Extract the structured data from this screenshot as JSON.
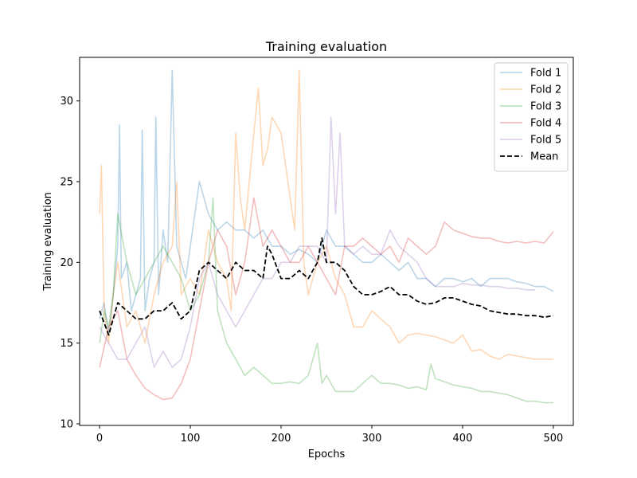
{
  "chart_data": {
    "type": "line",
    "title": "Training evaluation",
    "xlabel": "Epochs",
    "ylabel": "Training evaluation",
    "xlim": [
      -22,
      522
    ],
    "ylim": [
      9.9,
      32.7
    ],
    "xticks": [
      0,
      100,
      200,
      300,
      400,
      500
    ],
    "yticks": [
      10,
      15,
      20,
      25,
      30
    ],
    "grid": false,
    "legend_position": "top-right",
    "series": [
      {
        "name": "Fold 1",
        "color": "#1f77b4",
        "opacity": 0.3,
        "style": "solid",
        "x": [
          0,
          5,
          10,
          15,
          20,
          22,
          24,
          30,
          35,
          40,
          45,
          47,
          50,
          55,
          60,
          62,
          65,
          70,
          75,
          80,
          85,
          90,
          95,
          100,
          110,
          120,
          130,
          140,
          150,
          160,
          170,
          180,
          190,
          200,
          210,
          220,
          230,
          240,
          250,
          260,
          270,
          280,
          290,
          300,
          310,
          320,
          330,
          340,
          350,
          360,
          370,
          380,
          390,
          400,
          410,
          420,
          430,
          440,
          450,
          460,
          470,
          480,
          490,
          500
        ],
        "values": [
          16.5,
          17.5,
          15.5,
          18,
          21,
          28.5,
          19,
          20,
          17,
          18,
          19,
          28.2,
          17,
          19,
          20,
          29,
          18,
          22,
          20,
          31.9,
          21,
          20,
          19,
          21,
          25,
          23,
          22,
          22.5,
          22,
          22,
          21.5,
          22,
          21,
          21,
          20.5,
          20.8,
          20.5,
          20,
          22,
          21,
          21,
          20.5,
          20,
          20,
          20.5,
          20,
          19.5,
          20,
          19,
          19,
          18.5,
          19,
          19,
          18.8,
          19,
          18.5,
          19,
          19,
          19,
          18.8,
          18.7,
          18.5,
          18.5,
          18.2
        ]
      },
      {
        "name": "Fold 2",
        "color": "#ff7f0e",
        "opacity": 0.3,
        "style": "solid",
        "x": [
          0,
          2,
          5,
          10,
          15,
          20,
          30,
          40,
          50,
          60,
          70,
          80,
          85,
          90,
          100,
          110,
          120,
          130,
          140,
          145,
          150,
          155,
          160,
          170,
          175,
          180,
          185,
          190,
          200,
          210,
          215,
          220,
          225,
          230,
          240,
          250,
          260,
          270,
          280,
          290,
          300,
          310,
          320,
          330,
          340,
          350,
          360,
          370,
          380,
          390,
          400,
          410,
          420,
          430,
          440,
          450,
          460,
          470,
          480,
          490,
          500
        ],
        "values": [
          23,
          26,
          17,
          15,
          18,
          20,
          16,
          17,
          15,
          18,
          20,
          21,
          25,
          18,
          19,
          18,
          22,
          20,
          19,
          17,
          28,
          24,
          22,
          28,
          30.8,
          26,
          27,
          29,
          28,
          24,
          22,
          31.9,
          20,
          18,
          20,
          21,
          19,
          18,
          16,
          16,
          17,
          16.5,
          16,
          15,
          15.5,
          15.6,
          15.5,
          15.4,
          15.2,
          15,
          15.5,
          14.5,
          14.6,
          14.2,
          14,
          14.3,
          14.2,
          14.1,
          14,
          14,
          14
        ]
      },
      {
        "name": "Fold 3",
        "color": "#2ca02c",
        "opacity": 0.3,
        "style": "solid",
        "x": [
          0,
          5,
          10,
          15,
          20,
          30,
          40,
          50,
          60,
          70,
          80,
          90,
          100,
          110,
          120,
          125,
          130,
          140,
          150,
          160,
          170,
          180,
          190,
          200,
          210,
          220,
          230,
          240,
          245,
          250,
          260,
          270,
          280,
          290,
          300,
          310,
          320,
          330,
          340,
          350,
          360,
          365,
          370,
          380,
          390,
          400,
          410,
          420,
          430,
          440,
          450,
          460,
          470,
          480,
          490,
          500
        ],
        "values": [
          15,
          17,
          16,
          18,
          23,
          20,
          18,
          19,
          20,
          21,
          20,
          19,
          17,
          18,
          20,
          24,
          17,
          15,
          14,
          13,
          13.5,
          13,
          12.5,
          12.5,
          12.6,
          12.5,
          13,
          15,
          12.5,
          13,
          12,
          12,
          12,
          12.5,
          13,
          12.5,
          12.5,
          12.4,
          12.2,
          12.3,
          12.1,
          13.7,
          12.8,
          12.6,
          12.4,
          12.3,
          12.2,
          12,
          12,
          11.9,
          11.8,
          11.6,
          11.4,
          11.4,
          11.3,
          11.3
        ]
      },
      {
        "name": "Fold 4",
        "color": "#d62728",
        "opacity": 0.3,
        "style": "solid",
        "x": [
          0,
          10,
          20,
          30,
          40,
          50,
          60,
          70,
          80,
          90,
          100,
          110,
          120,
          130,
          140,
          150,
          160,
          170,
          180,
          190,
          200,
          210,
          220,
          230,
          240,
          250,
          260,
          270,
          280,
          290,
          300,
          310,
          320,
          330,
          340,
          350,
          360,
          370,
          380,
          390,
          400,
          410,
          420,
          430,
          440,
          450,
          460,
          470,
          480,
          490,
          500
        ],
        "values": [
          13.5,
          16,
          17,
          14,
          13,
          12.2,
          11.8,
          11.5,
          11.6,
          12.5,
          14,
          17,
          20,
          22,
          21,
          18,
          20,
          24,
          21,
          22,
          21,
          20,
          20,
          21,
          20,
          19,
          18,
          21,
          21,
          21.5,
          21,
          20.5,
          21,
          20,
          21.5,
          21,
          20.5,
          21,
          22.5,
          22,
          21.8,
          21.6,
          21.5,
          21.5,
          21.3,
          21.2,
          21.3,
          21.2,
          21.3,
          21.2,
          21.9
        ]
      },
      {
        "name": "Fold 5",
        "color": "#9467bd",
        "opacity": 0.3,
        "style": "solid",
        "x": [
          0,
          10,
          20,
          30,
          40,
          50,
          60,
          70,
          80,
          90,
          100,
          110,
          120,
          130,
          140,
          150,
          160,
          170,
          180,
          190,
          200,
          210,
          220,
          230,
          240,
          250,
          255,
          260,
          265,
          270,
          280,
          290,
          300,
          310,
          320,
          330,
          340,
          350,
          360,
          370,
          380,
          390,
          400,
          410,
          420,
          430,
          440,
          450,
          460,
          470,
          480
        ],
        "values": [
          16,
          15,
          14,
          14,
          15,
          16,
          13.5,
          14.5,
          13.5,
          14,
          16,
          19,
          20,
          18,
          17,
          16,
          17,
          18,
          19,
          19,
          20,
          20,
          21,
          21,
          21,
          20,
          29,
          23,
          28,
          21,
          20.5,
          21,
          20.5,
          20.5,
          22,
          21,
          20.5,
          20,
          19,
          18.5,
          18.5,
          18.5,
          18.7,
          18.6,
          18.6,
          18.5,
          18.5,
          18.4,
          18.4,
          18.3,
          18.3
        ]
      },
      {
        "name": "Mean",
        "color": "#000000",
        "opacity": 1,
        "style": "dashed",
        "x": [
          0,
          10,
          20,
          30,
          40,
          50,
          60,
          70,
          80,
          90,
          100,
          110,
          120,
          130,
          140,
          150,
          160,
          170,
          180,
          185,
          190,
          200,
          210,
          220,
          230,
          240,
          245,
          250,
          260,
          270,
          280,
          290,
          300,
          310,
          320,
          330,
          340,
          350,
          360,
          370,
          380,
          390,
          400,
          410,
          420,
          430,
          440,
          450,
          460,
          470,
          480,
          490,
          500
        ],
        "values": [
          17,
          15.5,
          17.5,
          17,
          16.5,
          16.5,
          17,
          17,
          17.5,
          16.5,
          17,
          19.5,
          20,
          19.5,
          19,
          20,
          19.5,
          19.5,
          19,
          21,
          20.5,
          19,
          19,
          19.5,
          19,
          20,
          21.5,
          20,
          20,
          19.5,
          18.5,
          18,
          18,
          18.2,
          18.5,
          18,
          18,
          17.6,
          17.4,
          17.5,
          17.8,
          17.8,
          17.6,
          17.4,
          17.3,
          17,
          16.9,
          16.8,
          16.8,
          16.7,
          16.7,
          16.6,
          16.7
        ]
      }
    ]
  }
}
